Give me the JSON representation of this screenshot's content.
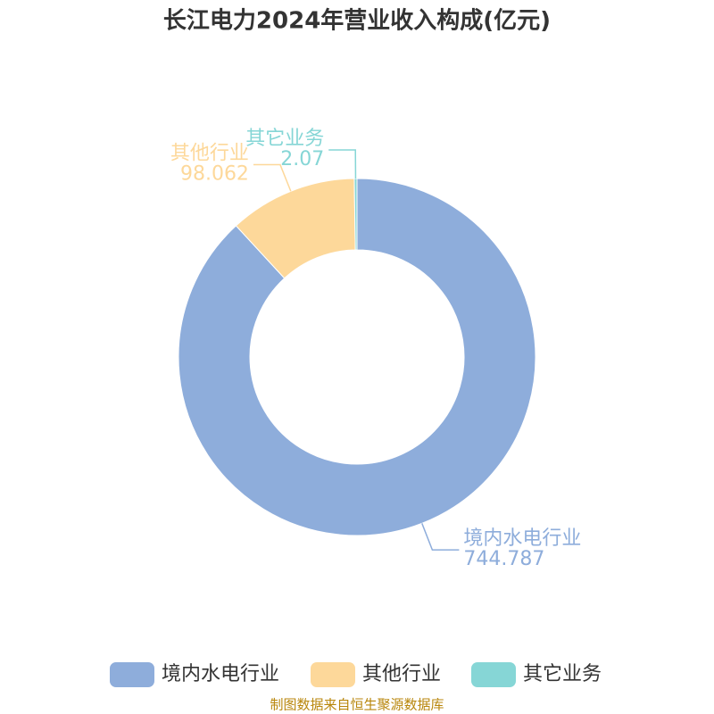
{
  "chart_data": {
    "type": "donut",
    "title": "长江电力2024年营业收入构成(亿元)",
    "categories": [
      "境内水电行业",
      "其他行业",
      "其它业务"
    ],
    "values": [
      744.787,
      98.062,
      2.07
    ],
    "colors": [
      "#8eaddb",
      "#fdd89a",
      "#86d6d6"
    ],
    "source": "制图数据来自恒生聚源数据库"
  }
}
